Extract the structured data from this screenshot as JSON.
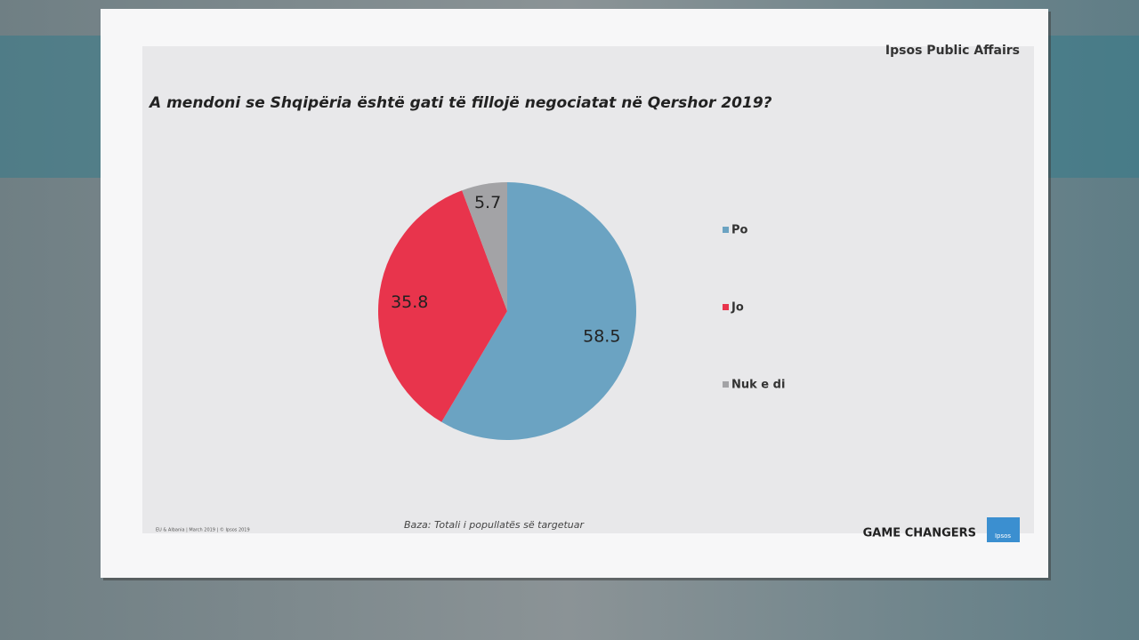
{
  "chart_data": {
    "type": "pie",
    "publisher": "Ipsos Public Affairs",
    "title": "A mendoni se Shqipëria është gati të fillojë negociatat në Qershor 2019?",
    "categories": [
      "Po",
      "Jo",
      "Nuk e di"
    ],
    "values": [
      58.5,
      35.8,
      5.7
    ],
    "colors": [
      "#6ba3c2",
      "#e8344c",
      "#a3a3a6"
    ],
    "note": "Baza: Totali i popullatës së targetuar",
    "footer": "EU & Albania | March 2019 | © Ipsos 2019",
    "brand": "GAME CHANGERS",
    "logo": "Ipsos",
    "legend": "right"
  }
}
